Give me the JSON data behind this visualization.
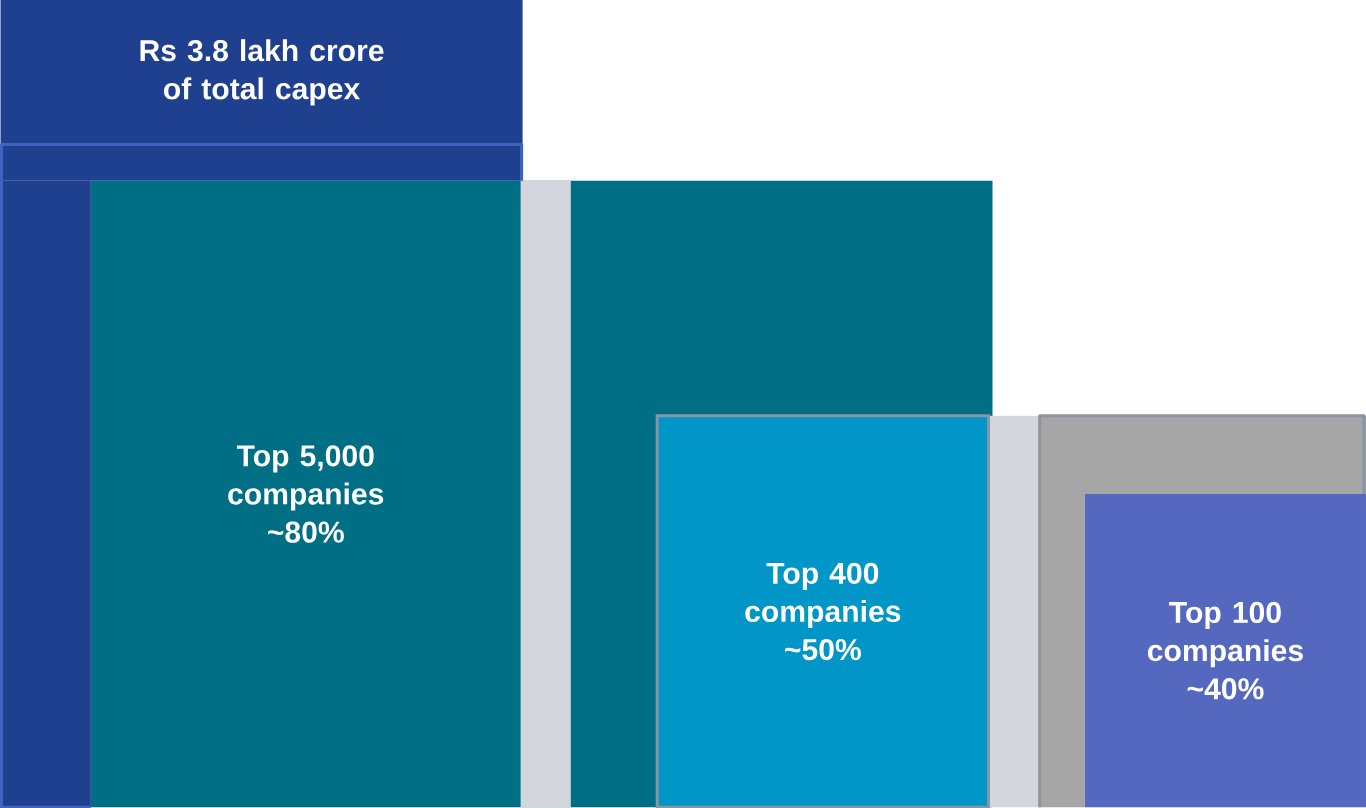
{
  "chart_data": {
    "type": "other",
    "title": "Rs 3.8 lakh crore of total capex",
    "categories": [
      "Top 5,000 companies",
      "Top 400 companies",
      "Top 100 companies"
    ],
    "values": [
      80,
      50,
      40
    ],
    "value_labels": [
      "~80%",
      "~50%",
      "~40%"
    ],
    "colors": [
      "#006e84",
      "#0096c8",
      "#5468bf"
    ]
  }
}
